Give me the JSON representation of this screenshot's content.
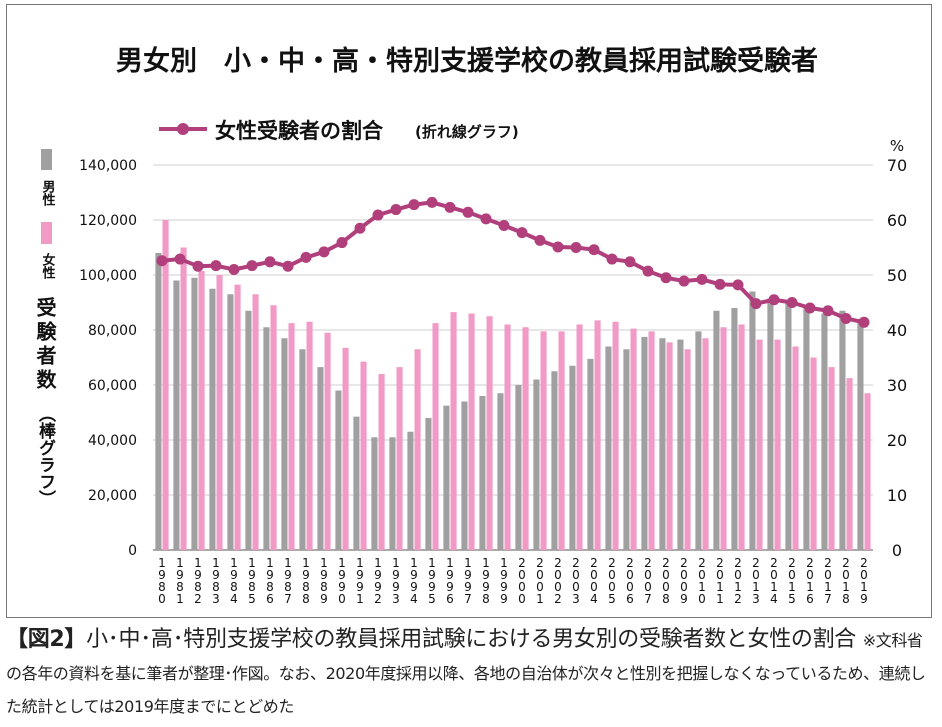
{
  "chart_data": {
    "type": "bar+line",
    "title": "男女別　小・中・高・特別支援学校の教員採用試験受験者",
    "line_legend": "女性受験者の割合",
    "line_legend_note": "(折れ線グラフ)",
    "bar_legend": [
      {
        "label": "男性",
        "color": "#a0a0a0"
      },
      {
        "label": "女性",
        "color": "#f29ac6"
      }
    ],
    "ylabel_left": "受験者数",
    "ylabel_left_note": "（棒グラフ）",
    "ylabel_right_unit": "%",
    "ylim_left": [
      0,
      140000
    ],
    "yticks_left": [
      "0",
      "20,000",
      "40,000",
      "60,000",
      "80,000",
      "100,000",
      "120,000",
      "140,000"
    ],
    "ylim_right": [
      0,
      70
    ],
    "yticks_right": [
      "0",
      "10",
      "20",
      "30",
      "40",
      "50",
      "60",
      "70"
    ],
    "categories": [
      "1980",
      "1981",
      "1982",
      "1983",
      "1984",
      "1985",
      "1986",
      "1987",
      "1988",
      "1989",
      "1990",
      "1991",
      "1992",
      "1993",
      "1994",
      "1995",
      "1996",
      "1997",
      "1998",
      "1999",
      "2000",
      "2001",
      "2002",
      "2003",
      "2004",
      "2005",
      "2006",
      "2007",
      "2008",
      "2009",
      "2010",
      "2011",
      "2012",
      "2013",
      "2014",
      "2015",
      "2016",
      "2017",
      "2018",
      "2019"
    ],
    "series": [
      {
        "name": "男性",
        "kind": "bar",
        "color": "#a0a0a0",
        "values": [
          108000,
          98000,
          99000,
          95000,
          93000,
          87000,
          81000,
          77000,
          73000,
          66500,
          58000,
          48500,
          41000,
          41000,
          43000,
          48000,
          52500,
          54000,
          56000,
          57000,
          60000,
          62000,
          65000,
          67000,
          69500,
          74000,
          73000,
          77500,
          77000,
          76500,
          79500,
          87000,
          88000,
          94000,
          91500,
          90000,
          89000,
          86000,
          87000,
          84000
        ],
        "color_name": "gray"
      },
      {
        "name": "女性",
        "kind": "bar",
        "color": "#f29ac6",
        "values": [
          120000,
          110000,
          101500,
          100000,
          96500,
          93000,
          89000,
          82500,
          83000,
          79000,
          73500,
          68500,
          64000,
          66500,
          73000,
          82500,
          86500,
          86000,
          85000,
          82000,
          81000,
          79500,
          79500,
          82000,
          83500,
          83000,
          80500,
          79500,
          75500,
          73000,
          77000,
          81000,
          82000,
          76500,
          76500,
          74000,
          70000,
          66500,
          62500,
          57000
        ]
      },
      {
        "name": "女性受験者の割合",
        "kind": "line",
        "color": "#b03f7c",
        "values": [
          52.6,
          52.9,
          51.6,
          51.7,
          51.0,
          51.7,
          52.4,
          51.6,
          53.2,
          54.2,
          55.9,
          58.5,
          60.9,
          61.9,
          62.8,
          63.2,
          62.3,
          61.4,
          60.2,
          59.0,
          57.7,
          56.3,
          55.1,
          55.0,
          54.6,
          52.9,
          52.4,
          50.7,
          49.5,
          48.9,
          49.2,
          48.3,
          48.2,
          44.8,
          45.5,
          45.0,
          44.0,
          43.5,
          42.1,
          41.4
        ]
      }
    ]
  },
  "caption": {
    "tag": "【図2】",
    "main": "小･中･高･特別支援学校の教員採用試験における男女別の受験者数と女性の割合",
    "note": "※文科省の各年の資料を基に筆者が整理･作図。なお、2020年度採用以降、各地の自治体が次々と性別を把握しなくなっているため、連続した統計としては2019年度までにとどめた"
  }
}
